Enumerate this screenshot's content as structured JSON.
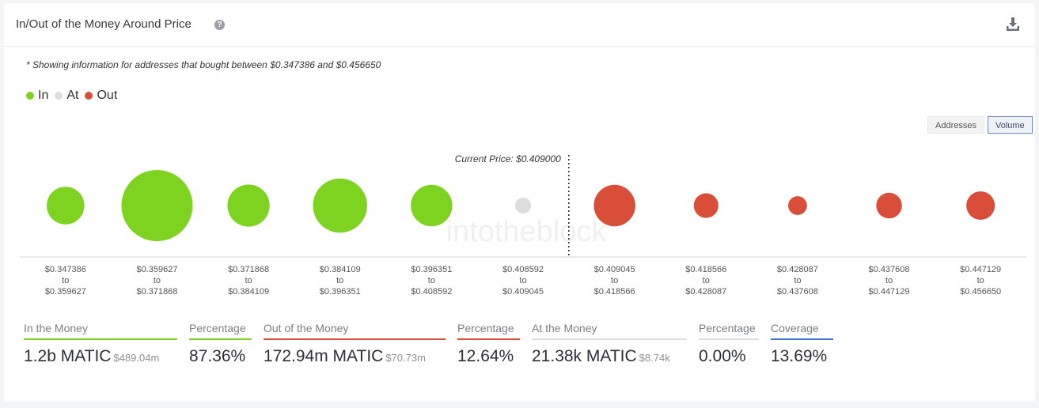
{
  "header": {
    "title": "In/Out of the Money Around Price",
    "help_icon": "?"
  },
  "note": "* Showing information for addresses that bought between $0.347386 and $0.456650",
  "legend": [
    {
      "label": "In",
      "color": "#7ed321"
    },
    {
      "label": "At",
      "color": "#dddddd"
    },
    {
      "label": "Out",
      "color": "#d94e38"
    }
  ],
  "toggles": {
    "addresses": "Addresses",
    "volume": "Volume",
    "active": "volume"
  },
  "watermark": "intotheblock",
  "chart_data": {
    "type": "bubble",
    "current_price_label": "Current Price: $0.409000",
    "current_price": 0.409,
    "bins": [
      {
        "from": "$0.347386",
        "to": "$0.359627",
        "status": "in",
        "relative_volume": 0.28
      },
      {
        "from": "$0.359627",
        "to": "$0.371868",
        "status": "in",
        "relative_volume": 1.0
      },
      {
        "from": "$0.371868",
        "to": "$0.384109",
        "status": "in",
        "relative_volume": 0.35
      },
      {
        "from": "$0.384109",
        "to": "$0.396351",
        "status": "in",
        "relative_volume": 0.58
      },
      {
        "from": "$0.396351",
        "to": "$0.408592",
        "status": "in",
        "relative_volume": 0.34
      },
      {
        "from": "$0.408592",
        "to": "$0.409045",
        "status": "at",
        "relative_volume": 0.05
      },
      {
        "from": "$0.409045",
        "to": "$0.418566",
        "status": "out",
        "relative_volume": 0.34
      },
      {
        "from": "$0.418566",
        "to": "$0.428087",
        "status": "out",
        "relative_volume": 0.12
      },
      {
        "from": "$0.428087",
        "to": "$0.437608",
        "status": "out",
        "relative_volume": 0.07
      },
      {
        "from": "$0.437608",
        "to": "$0.447129",
        "status": "out",
        "relative_volume": 0.13
      },
      {
        "from": "$0.447129",
        "to": "$0.456650",
        "status": "out",
        "relative_volume": 0.16
      }
    ],
    "to_word": "to",
    "colors": {
      "in": "#7ed321",
      "at": "#dddddd",
      "out": "#d94e38"
    }
  },
  "stats": {
    "in_money": {
      "label": "In the Money",
      "value": "1.2b MATIC",
      "sub": "$489.04m",
      "color": "#7ed321"
    },
    "in_pct": {
      "label": "Percentage",
      "value": "87.36%",
      "color": "#7ed321"
    },
    "out_money": {
      "label": "Out of the Money",
      "value": "172.94m MATIC",
      "sub": "$70.73m",
      "color": "#d94e38"
    },
    "out_pct": {
      "label": "Percentage",
      "value": "12.64%",
      "color": "#d94e38"
    },
    "at_money": {
      "label": "At the Money",
      "value": "21.38k MATIC",
      "sub": "$8.74k",
      "color": "#dddddd"
    },
    "at_pct": {
      "label": "Percentage",
      "value": "0.00%",
      "color": "#dddddd"
    },
    "coverage": {
      "label": "Coverage",
      "value": "13.69%",
      "color": "#3d78d8"
    }
  }
}
